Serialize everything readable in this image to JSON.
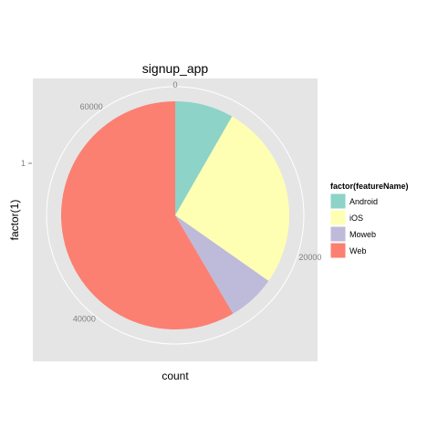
{
  "chart_data": {
    "type": "pie",
    "title": "signup_app",
    "xlabel": "count",
    "ylabel": "factor(1)",
    "y_ticks": [
      "1"
    ],
    "theta_ticks": [
      0,
      20000,
      40000,
      60000
    ],
    "theta_max": 66200,
    "grid": true,
    "legend_position": "right",
    "legend_title": "factor(featureName)",
    "slices": [
      {
        "label": "Android",
        "value": 5500,
        "color": "#8DD3C7"
      },
      {
        "label": "iOS",
        "value": 17500,
        "color": "#FFFFB3"
      },
      {
        "label": "Moweb",
        "value": 4500,
        "color": "#BEBADA"
      },
      {
        "label": "Web",
        "value": 38700,
        "color": "#FB8072"
      }
    ]
  }
}
